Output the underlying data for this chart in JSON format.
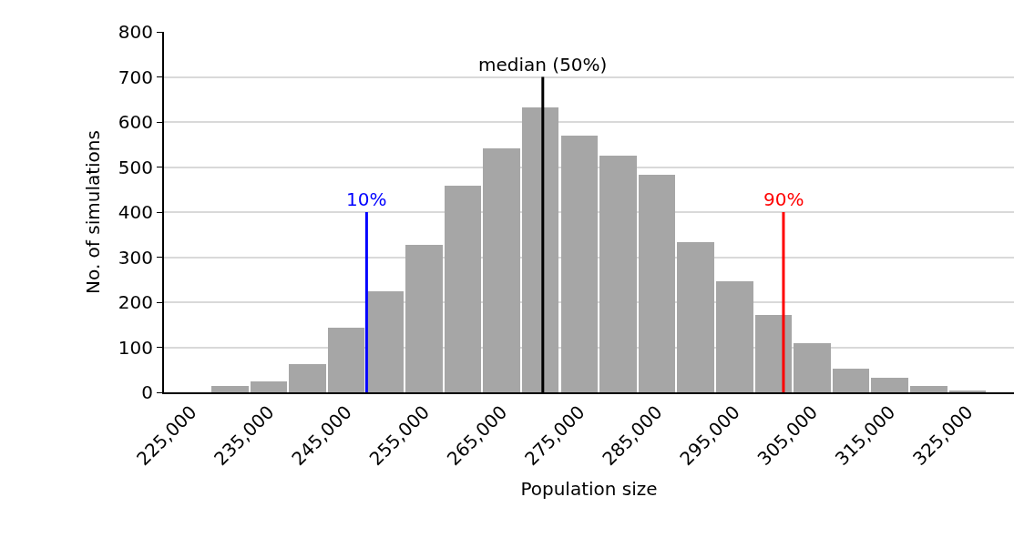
{
  "chart_data": {
    "type": "bar",
    "xlabel": "Population size",
    "ylabel": "No. of simulations",
    "x": [
      230000,
      235000,
      240000,
      245000,
      250000,
      255000,
      260000,
      265000,
      270000,
      275000,
      280000,
      285000,
      290000,
      295000,
      300000,
      305000,
      310000,
      315000,
      320000,
      325000
    ],
    "values": [
      15,
      24,
      62,
      143,
      224,
      328,
      459,
      541,
      633,
      570,
      526,
      482,
      333,
      246,
      171,
      109,
      53,
      33,
      15,
      5
    ],
    "color": "#a6a6a6",
    "xlim": [
      221500,
      331000
    ],
    "xticks": [
      {
        "value": 225000,
        "label": "225,000"
      },
      {
        "value": 235000,
        "label": "235,000"
      },
      {
        "value": 245000,
        "label": "245,000"
      },
      {
        "value": 255000,
        "label": "255,000"
      },
      {
        "value": 265000,
        "label": "265,000"
      },
      {
        "value": 275000,
        "label": "275,000"
      },
      {
        "value": 285000,
        "label": "285,000"
      },
      {
        "value": 295000,
        "label": "295,000"
      },
      {
        "value": 305000,
        "label": "305,000"
      },
      {
        "value": 315000,
        "label": "315,000"
      },
      {
        "value": 325000,
        "label": "325,000"
      }
    ],
    "ylim": [
      0,
      800
    ],
    "yticks": [
      0,
      100,
      200,
      300,
      400,
      500,
      600,
      700,
      800
    ],
    "grid": "y",
    "ref_lines": [
      {
        "axis": "x",
        "value": 247600,
        "color": "#0000ff"
      },
      {
        "axis": "x",
        "value": 270300,
        "color": "#000000"
      },
      {
        "axis": "x",
        "value": 301300,
        "color": "#ff0000"
      }
    ],
    "annotations": [
      {
        "text": "10%",
        "x": 247600,
        "y": 400
      },
      {
        "text": "median (50%)",
        "x": 270300,
        "y": 700
      },
      {
        "text": "90%",
        "x": 301300,
        "y": 400
      }
    ]
  }
}
